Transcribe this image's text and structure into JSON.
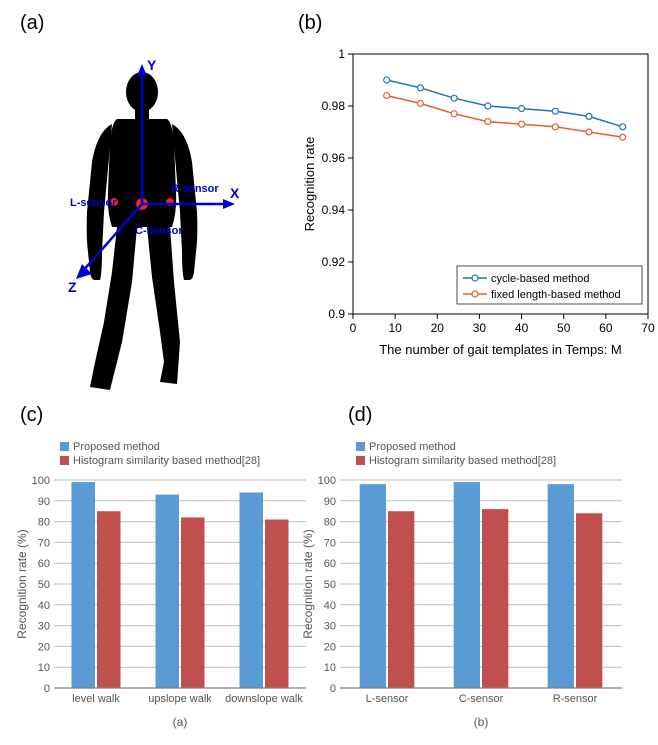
{
  "panel_a": {
    "label": "(a)",
    "axes": {
      "x": "X",
      "y": "Y",
      "z": "Z"
    },
    "sensors": {
      "left": "L-sensor",
      "center": "C-sensor",
      "right": "R-sensor"
    },
    "axis_color": "#0000d0",
    "sensor_color": "#ff2020"
  },
  "panel_b": {
    "label": "(b)",
    "type": "line",
    "x_label": "The number of gait templates in Temps: M",
    "y_label": "Recognition rate",
    "x_ticks": [
      0,
      10,
      20,
      30,
      40,
      50,
      60,
      70
    ],
    "y_ticks": [
      0.9,
      0.92,
      0.94,
      0.96,
      0.98,
      1
    ],
    "xlim": [
      0,
      70
    ],
    "ylim": [
      0.9,
      1.0
    ],
    "series": [
      {
        "name": "cycle-based method",
        "color": "#2070c0",
        "marker": "circle",
        "x": [
          8,
          16,
          24,
          32,
          40,
          48,
          56,
          64
        ],
        "y": [
          0.99,
          0.987,
          0.983,
          0.98,
          0.979,
          0.978,
          0.976,
          0.972
        ]
      },
      {
        "name": "fixed length-based method",
        "color": "#e06030",
        "marker": "circle",
        "x": [
          8,
          16,
          24,
          32,
          40,
          48,
          56,
          64
        ],
        "y": [
          0.984,
          0.981,
          0.977,
          0.974,
          0.973,
          0.972,
          0.97,
          0.968
        ]
      }
    ],
    "background_color": "#ffffff",
    "axis_fontsize": 12
  },
  "panel_c": {
    "label": "(c)",
    "sub_label": "(a)",
    "type": "bar",
    "y_label": "Recognition rate (%)",
    "y_ticks": [
      0,
      10,
      20,
      30,
      40,
      50,
      60,
      70,
      80,
      90,
      100
    ],
    "ylim": [
      0,
      100
    ],
    "categories": [
      "level walk",
      "upslope walk",
      "downslope walk"
    ],
    "series": [
      {
        "name": "Proposed method",
        "color": "#5b9bd5",
        "values": [
          99,
          93,
          94
        ]
      },
      {
        "name": "Histogram similarity based method[28]",
        "color": "#c0504d",
        "values": [
          85,
          82,
          81
        ]
      }
    ],
    "grid_color": "#bfbfbf",
    "background_color": "#ffffff"
  },
  "panel_d": {
    "label": "(d)",
    "sub_label": "(b)",
    "type": "bar",
    "y_label": "Recognition rate (%)",
    "y_ticks": [
      0,
      10,
      20,
      30,
      40,
      50,
      60,
      70,
      80,
      90,
      100
    ],
    "ylim": [
      0,
      100
    ],
    "categories": [
      "L-sensor",
      "C-sensor",
      "R-sensor"
    ],
    "series": [
      {
        "name": "Proposed method",
        "color": "#5b9bd5",
        "values": [
          98,
          99,
          98
        ]
      },
      {
        "name": "Histogram similarity based method[28]",
        "color": "#c0504d",
        "values": [
          85,
          86,
          84
        ]
      }
    ],
    "grid_color": "#bfbfbf",
    "background_color": "#ffffff"
  }
}
